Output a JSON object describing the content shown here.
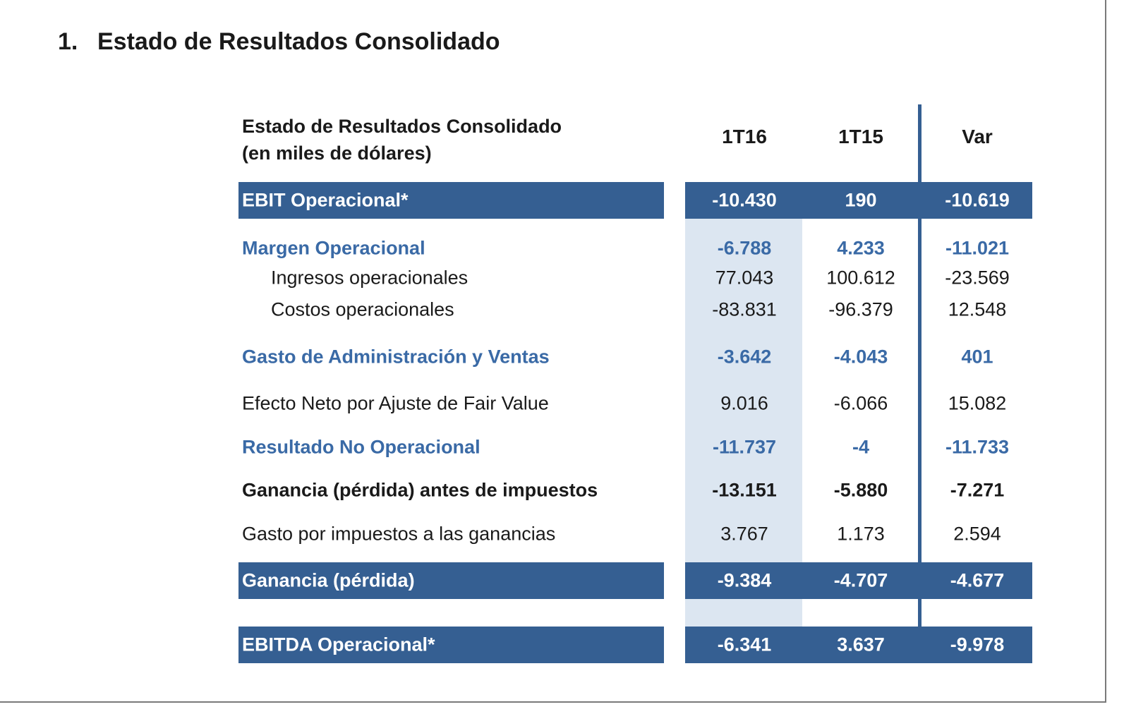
{
  "title": {
    "number": "1.",
    "text": "Estado de Resultados Consolidado"
  },
  "table": {
    "header_label_line1": "Estado de Resultados Consolidado",
    "header_label_line2": "(en miles de dólares)",
    "columns": [
      "1T16",
      "1T15",
      "Var"
    ],
    "rows": [
      {
        "label": "EBIT Operacional*",
        "values": [
          "-10.430",
          "190",
          "-10.619"
        ],
        "style": "bar"
      },
      {
        "label": "Margen Operacional",
        "values": [
          "-6.788",
          "4.233",
          "-11.021"
        ],
        "style": "blue"
      },
      {
        "label": "Ingresos operacionales",
        "values": [
          "77.043",
          "100.612",
          "-23.569"
        ],
        "style": "indent"
      },
      {
        "label": "Costos operacionales",
        "values": [
          "-83.831",
          "-96.379",
          "12.548"
        ],
        "style": "indent"
      },
      {
        "label": "Gasto de Administración y Ventas",
        "values": [
          "-3.642",
          "-4.043",
          "401"
        ],
        "style": "blue"
      },
      {
        "label": "Efecto Neto por Ajuste de Fair Value",
        "values": [
          "9.016",
          "-6.066",
          "15.082"
        ],
        "style": "normal"
      },
      {
        "label": "Resultado No Operacional",
        "values": [
          "-11.737",
          "-4",
          "-11.733"
        ],
        "style": "blue"
      },
      {
        "label": "Ganancia (pérdida) antes de impuestos",
        "values": [
          "-13.151",
          "-5.880",
          "-7.271"
        ],
        "style": "bold"
      },
      {
        "label": "Gasto por impuestos a las ganancias",
        "values": [
          "3.767",
          "1.173",
          "2.594"
        ],
        "style": "normal"
      },
      {
        "label": "Ganancia (pérdida)",
        "values": [
          "-9.384",
          "-4.707",
          "-4.677"
        ],
        "style": "bar"
      },
      {
        "label": "EBITDA Operacional*",
        "values": [
          "-6.341",
          "3.637",
          "-9.978"
        ],
        "style": "bar"
      }
    ]
  },
  "colors": {
    "bar": "#355f92",
    "highlight": "#dce6f1",
    "blue_text": "#3a6aa6"
  }
}
